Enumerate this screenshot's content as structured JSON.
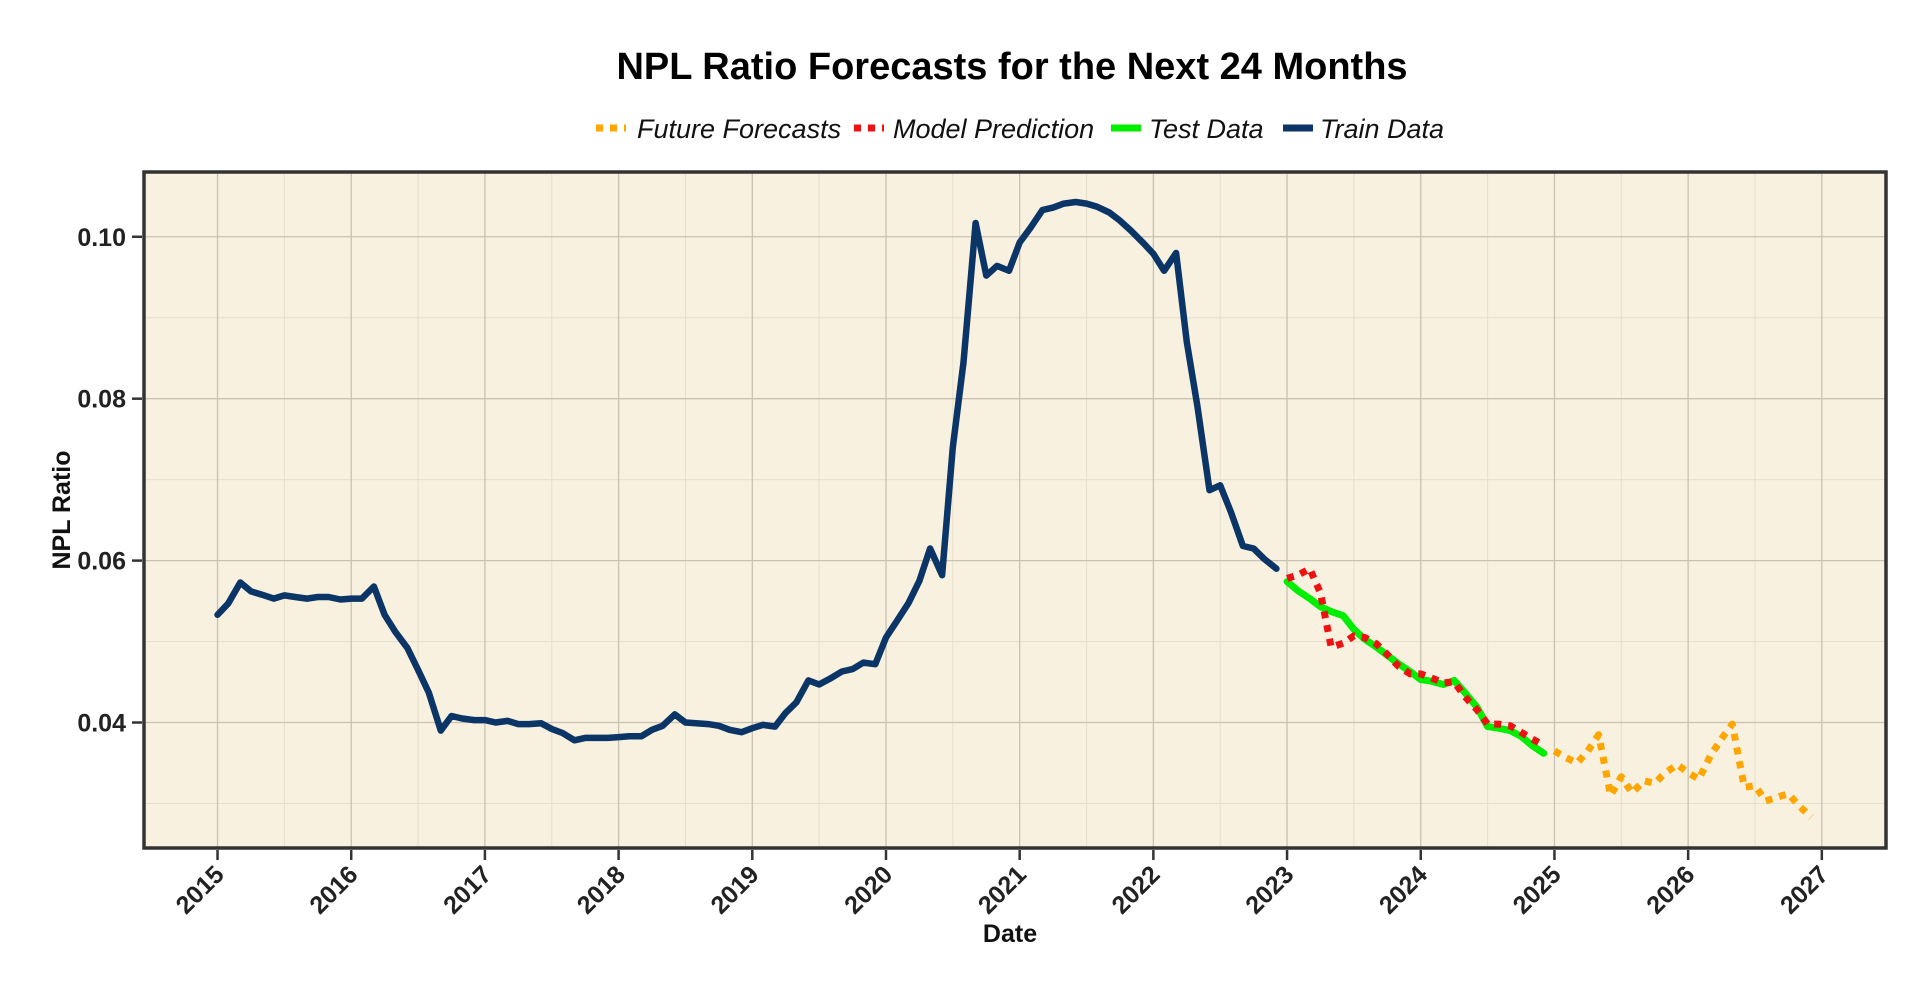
{
  "colors": {
    "panel_bg": "#F9F1DF",
    "grid_major": "#C8C2B4",
    "grid_minor": "#E6DFCC",
    "border": "#333333",
    "future": "#FFA500",
    "model": "#EE1111",
    "test": "#00EE00",
    "train": "#0B3566"
  },
  "chart_data": {
    "type": "line",
    "title": "NPL Ratio Forecasts for the Next 24 Months",
    "xlabel": "Date",
    "ylabel": "NPL Ratio",
    "xlim": [
      2014.45,
      2027.48
    ],
    "ylim": [
      0.0245,
      0.108
    ],
    "x_ticks": [
      "2015",
      "2016",
      "2017",
      "2018",
      "2019",
      "2020",
      "2021",
      "2022",
      "2023",
      "2024",
      "2025",
      "2026",
      "2027"
    ],
    "y_ticks": [
      "0.04",
      "0.06",
      "0.08",
      "0.10"
    ],
    "grid": true,
    "legend_position": "top",
    "legend": [
      {
        "key": "future",
        "label": "Future Forecasts"
      },
      {
        "key": "model",
        "label": "Model Prediction"
      },
      {
        "key": "test",
        "label": "Test Data"
      },
      {
        "key": "train",
        "label": "Train Data"
      }
    ],
    "series": [
      {
        "key": "train",
        "style": "solid",
        "x": [
          2015.0,
          2015.08,
          2015.17,
          2015.25,
          2015.33,
          2015.42,
          2015.5,
          2015.58,
          2015.67,
          2015.75,
          2015.83,
          2015.92,
          2016.0,
          2016.08,
          2016.17,
          2016.25,
          2016.33,
          2016.42,
          2016.5,
          2016.58,
          2016.67,
          2016.75,
          2016.83,
          2016.92,
          2017.0,
          2017.08,
          2017.17,
          2017.25,
          2017.33,
          2017.42,
          2017.5,
          2017.58,
          2017.67,
          2017.75,
          2017.83,
          2017.92,
          2018.0,
          2018.08,
          2018.17,
          2018.25,
          2018.33,
          2018.42,
          2018.5,
          2018.58,
          2018.67,
          2018.75,
          2018.83,
          2018.92,
          2019.0,
          2019.08,
          2019.17,
          2019.25,
          2019.33,
          2019.42,
          2019.5,
          2019.58,
          2019.67,
          2019.75,
          2019.83,
          2019.92,
          2020.0,
          2020.08,
          2020.17,
          2020.25,
          2020.33,
          2020.42,
          2020.5,
          2020.58,
          2020.67,
          2020.75,
          2020.83,
          2020.92,
          2021.0,
          2021.08,
          2021.17,
          2021.25,
          2021.33,
          2021.42,
          2021.5,
          2021.58,
          2021.67,
          2021.75,
          2021.83,
          2021.92,
          2022.0,
          2022.08,
          2022.17,
          2022.25,
          2022.33,
          2022.42,
          2022.5,
          2022.58,
          2022.67,
          2022.75,
          2022.83,
          2022.92
        ],
        "y": [
          0.0533,
          0.0547,
          0.0573,
          0.0562,
          0.0558,
          0.0553,
          0.0557,
          0.0555,
          0.0553,
          0.0555,
          0.0555,
          0.0552,
          0.0553,
          0.0553,
          0.0568,
          0.0533,
          0.0512,
          0.0492,
          0.0465,
          0.0437,
          0.039,
          0.0408,
          0.0405,
          0.0403,
          0.0403,
          0.04,
          0.0402,
          0.0398,
          0.0398,
          0.0399,
          0.0392,
          0.0387,
          0.0378,
          0.0381,
          0.0381,
          0.0381,
          0.0382,
          0.0383,
          0.0383,
          0.0391,
          0.0396,
          0.041,
          0.04,
          0.0399,
          0.0398,
          0.0396,
          0.0391,
          0.0388,
          0.0393,
          0.0397,
          0.0395,
          0.0412,
          0.0425,
          0.0452,
          0.0447,
          0.0454,
          0.0463,
          0.0466,
          0.0474,
          0.0472,
          0.0505,
          0.0525,
          0.0548,
          0.0575,
          0.0615,
          0.0582,
          0.074,
          0.0845,
          0.1017,
          0.0952,
          0.0964,
          0.0958,
          0.0993,
          0.1011,
          0.1033,
          0.1036,
          0.1041,
          0.1043,
          0.1041,
          0.1037,
          0.103,
          0.102,
          0.1008,
          0.0993,
          0.0979,
          0.0958,
          0.098,
          0.087,
          0.079,
          0.0687,
          0.0693,
          0.066,
          0.0618,
          0.0615,
          0.0602,
          0.059
        ]
      },
      {
        "key": "test",
        "style": "solid",
        "x": [
          2023.0,
          2023.08,
          2023.17,
          2023.25,
          2023.33,
          2023.42,
          2023.5,
          2023.58,
          2023.67,
          2023.75,
          2023.83,
          2023.92,
          2024.0,
          2024.08,
          2024.17,
          2024.25,
          2024.33,
          2024.42,
          2024.5,
          2024.58,
          2024.67,
          2024.75,
          2024.83,
          2024.92
        ],
        "y": [
          0.0574,
          0.0563,
          0.0553,
          0.0543,
          0.0537,
          0.0532,
          0.0515,
          0.0503,
          0.0493,
          0.0483,
          0.0473,
          0.0463,
          0.0453,
          0.0451,
          0.0447,
          0.0452,
          0.0437,
          0.0419,
          0.0395,
          0.0393,
          0.039,
          0.0383,
          0.0372,
          0.0362
        ]
      },
      {
        "key": "model",
        "style": "dotted",
        "x": [
          2023.0,
          2023.08,
          2023.17,
          2023.25,
          2023.33,
          2023.42,
          2023.5,
          2023.58,
          2023.67,
          2023.75,
          2023.83,
          2023.92,
          2024.0,
          2024.08,
          2024.17,
          2024.25,
          2024.33,
          2024.42,
          2024.5,
          2024.58,
          2024.67,
          2024.75,
          2024.83,
          2024.92
        ],
        "y": [
          0.0578,
          0.0582,
          0.059,
          0.056,
          0.0493,
          0.0498,
          0.0507,
          0.0505,
          0.0497,
          0.0484,
          0.047,
          0.046,
          0.046,
          0.0455,
          0.0449,
          0.045,
          0.0432,
          0.0416,
          0.0398,
          0.0398,
          0.0396,
          0.0388,
          0.038,
          0.0372
        ]
      },
      {
        "key": "future",
        "style": "dotted",
        "x": [
          2025.0,
          2025.08,
          2025.17,
          2025.25,
          2025.33,
          2025.42,
          2025.5,
          2025.58,
          2025.67,
          2025.75,
          2025.83,
          2025.92,
          2026.0,
          2026.08,
          2026.17,
          2026.25,
          2026.33,
          2026.42,
          2026.5,
          2026.58,
          2026.67,
          2026.75,
          2026.83,
          2026.92
        ],
        "y": [
          0.0365,
          0.0357,
          0.035,
          0.0365,
          0.0385,
          0.031,
          0.0333,
          0.0313,
          0.0328,
          0.0325,
          0.0338,
          0.0348,
          0.0338,
          0.033,
          0.036,
          0.038,
          0.0398,
          0.032,
          0.0322,
          0.0303,
          0.0308,
          0.0312,
          0.0297,
          0.0283
        ]
      }
    ]
  }
}
